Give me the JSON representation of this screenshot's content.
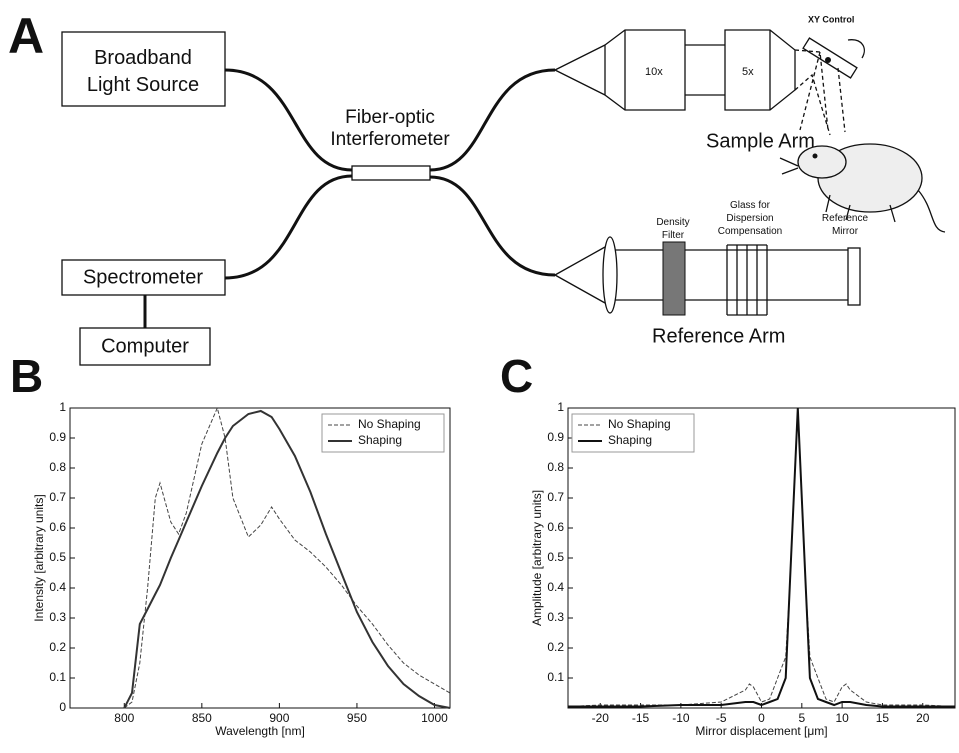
{
  "diagram": {
    "panel_label": "A",
    "source": [
      "Broadband",
      "Light Source"
    ],
    "interferometer": [
      "Fiber-optic",
      "Interferometer"
    ],
    "spectrometer": "Spectrometer",
    "computer": "Computer",
    "objective_1": "10x",
    "objective_2": "5x",
    "xy_control": "XY Control",
    "sample_arm": "Sample Arm",
    "density_filter": [
      "Density",
      "Filter"
    ],
    "glass": [
      "Glass for",
      "Dispersion",
      "Compensation"
    ],
    "reference_mirror": [
      "Reference",
      "Mirror"
    ],
    "reference_arm": "Reference Arm"
  },
  "chart_data": [
    {
      "type": "line",
      "panel_label": "B",
      "x_label": "Wavelength [nm]",
      "y_label": "Intensity [arbitrary units]",
      "xlim": [
        765,
        1010
      ],
      "xticks": [
        800,
        850,
        900,
        950,
        1000
      ],
      "ylim": [
        0,
        1
      ],
      "yticks": [
        0,
        0.1,
        0.2,
        0.3,
        0.4,
        0.5,
        0.6,
        0.7,
        0.8,
        0.9,
        1
      ],
      "legend": "upper right",
      "x": [
        800,
        805,
        810,
        815,
        820,
        823,
        830,
        835,
        840,
        850,
        860,
        865,
        870,
        880,
        888,
        895,
        900,
        910,
        920,
        930,
        940,
        950,
        960,
        970,
        980,
        990,
        1000,
        1010
      ],
      "series": [
        {
          "name": "No Shaping",
          "color": "#444444",
          "style": "dashed",
          "values": [
            0,
            0.02,
            0.15,
            0.4,
            0.7,
            0.75,
            0.62,
            0.58,
            0.65,
            0.88,
            1.0,
            0.9,
            0.7,
            0.57,
            0.61,
            0.67,
            0.63,
            0.56,
            0.52,
            0.47,
            0.41,
            0.34,
            0.28,
            0.21,
            0.15,
            0.11,
            0.08,
            0.05
          ]
        },
        {
          "name": "Shaping",
          "color": "#333333",
          "style": "solid",
          "values": [
            0,
            0.05,
            0.28,
            0.33,
            0.38,
            0.41,
            0.5,
            0.56,
            0.62,
            0.74,
            0.85,
            0.9,
            0.94,
            0.98,
            0.99,
            0.97,
            0.93,
            0.84,
            0.72,
            0.58,
            0.45,
            0.32,
            0.22,
            0.14,
            0.08,
            0.04,
            0.01,
            0
          ]
        }
      ]
    },
    {
      "type": "line",
      "panel_label": "C",
      "x_label": "Mirror displacement [μm]",
      "y_label": "Amplitude [arbitrary units]",
      "xlim": [
        -24,
        24
      ],
      "xticks": [
        -20,
        -15,
        -10,
        -5,
        0,
        5,
        10,
        15,
        20
      ],
      "ylim": [
        0,
        1
      ],
      "yticks": [
        0.1,
        0.2,
        0.3,
        0.4,
        0.5,
        0.6,
        0.7,
        0.8,
        0.9,
        1
      ],
      "legend": "upper left",
      "x": [
        -24,
        -20,
        -15,
        -10,
        -5,
        -2,
        -1.5,
        -1,
        0,
        1,
        2,
        3,
        3.5,
        4.5,
        5.5,
        6,
        7,
        8,
        9,
        10,
        10.5,
        11,
        13,
        15,
        20,
        24
      ],
      "series": [
        {
          "name": "No Shaping",
          "color": "#444444",
          "style": "dashed",
          "values": [
            0.005,
            0.01,
            0.01,
            0.01,
            0.02,
            0.06,
            0.08,
            0.07,
            0.02,
            0.03,
            0.1,
            0.17,
            0.4,
            1,
            0.4,
            0.17,
            0.1,
            0.03,
            0.02,
            0.07,
            0.08,
            0.06,
            0.02,
            0.01,
            0.01,
            0.005
          ]
        },
        {
          "name": "Shaping",
          "color": "#111111",
          "style": "solid",
          "values": [
            0.005,
            0.005,
            0.005,
            0.01,
            0.01,
            0.02,
            0.02,
            0.02,
            0.01,
            0.02,
            0.03,
            0.1,
            0.4,
            1,
            0.4,
            0.1,
            0.03,
            0.02,
            0.01,
            0.02,
            0.02,
            0.02,
            0.01,
            0.005,
            0.005,
            0.005
          ]
        }
      ]
    }
  ]
}
